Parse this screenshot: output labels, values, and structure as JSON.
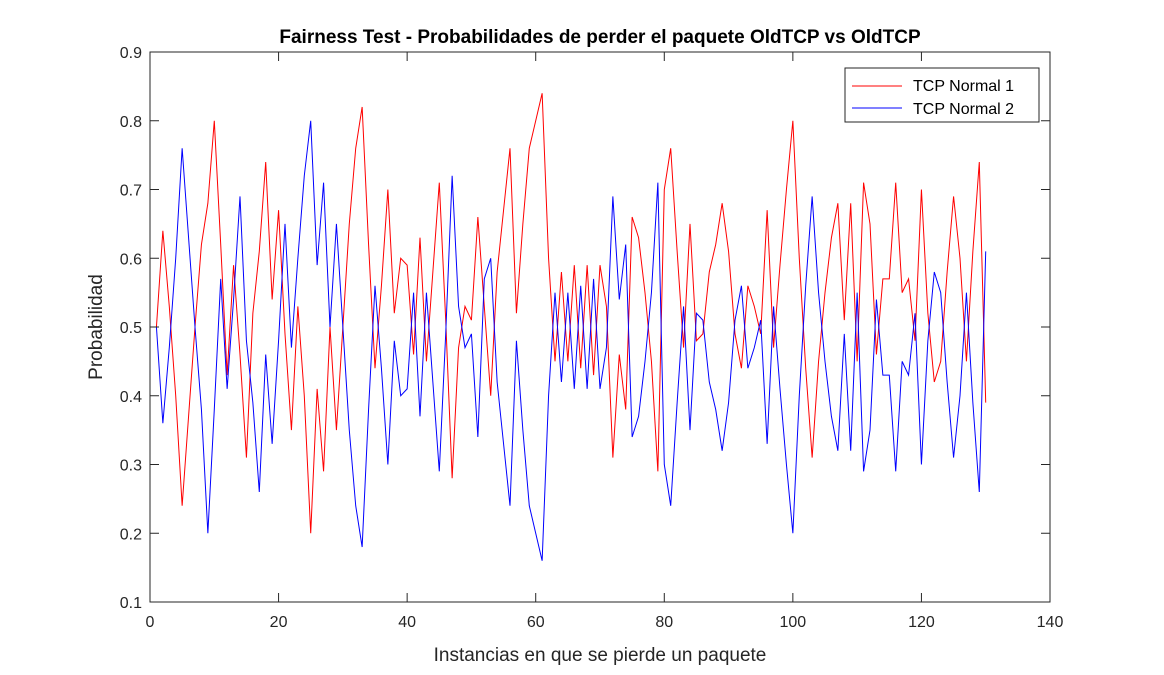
{
  "chart_data": {
    "type": "line",
    "title": "Fairness Test - Probabilidades de perder el paquete OldTCP vs OldTCP",
    "xlabel": "Instancias en que se pierde un paquete",
    "ylabel": "Probabilidad",
    "xlim": [
      0,
      140
    ],
    "ylim": [
      0.1,
      0.9
    ],
    "xticks": [
      0,
      20,
      40,
      60,
      80,
      100,
      120,
      140
    ],
    "xtick_labels": [
      "0",
      "20",
      "40",
      "60",
      "80",
      "100",
      "120",
      "140"
    ],
    "yticks": [
      0.1,
      0.2,
      0.3,
      0.4,
      0.5,
      0.6,
      0.7,
      0.8,
      0.9
    ],
    "ytick_labels": [
      "0.1",
      "0.2",
      "0.3",
      "0.4",
      "0.5",
      "0.6",
      "0.7",
      "0.8",
      "0.9"
    ],
    "grid": false,
    "legend_position": "top-right",
    "series": [
      {
        "name": "TCP Normal 1",
        "color": "#ff0000",
        "x": [
          1,
          2,
          3,
          4,
          5,
          6,
          7,
          8,
          9,
          10,
          11,
          12,
          13,
          14,
          15,
          16,
          17,
          18,
          19,
          20,
          21,
          22,
          23,
          24,
          25,
          26,
          27,
          28,
          29,
          30,
          31,
          32,
          33,
          34,
          35,
          36,
          37,
          38,
          39,
          40,
          41,
          42,
          43,
          44,
          45,
          46,
          47,
          48,
          49,
          50,
          51,
          52,
          53,
          54,
          55,
          56,
          57,
          58,
          59,
          60,
          61,
          62,
          63,
          64,
          65,
          66,
          67,
          68,
          69,
          70,
          71,
          72,
          73,
          74,
          75,
          76,
          77,
          78,
          79,
          80,
          81,
          82,
          83,
          84,
          85,
          86,
          87,
          88,
          89,
          90,
          91,
          92,
          93,
          94,
          95,
          96,
          97,
          98,
          99,
          100,
          101,
          102,
          103,
          104,
          105,
          106,
          107,
          108,
          109,
          110,
          111,
          112,
          113,
          114,
          115,
          116,
          117,
          118,
          119,
          120,
          121,
          122,
          123,
          124,
          125,
          126,
          127,
          128,
          129,
          130
        ],
        "y": [
          0.5,
          0.64,
          0.53,
          0.4,
          0.24,
          0.37,
          0.5,
          0.62,
          0.68,
          0.8,
          0.62,
          0.43,
          0.59,
          0.46,
          0.31,
          0.52,
          0.61,
          0.74,
          0.54,
          0.67,
          0.49,
          0.35,
          0.53,
          0.4,
          0.2,
          0.41,
          0.29,
          0.5,
          0.35,
          0.5,
          0.65,
          0.76,
          0.82,
          0.62,
          0.44,
          0.56,
          0.7,
          0.52,
          0.6,
          0.59,
          0.46,
          0.63,
          0.45,
          0.58,
          0.71,
          0.51,
          0.28,
          0.47,
          0.53,
          0.51,
          0.66,
          0.53,
          0.4,
          0.58,
          0.67,
          0.76,
          0.52,
          0.65,
          0.76,
          0.8,
          0.84,
          0.6,
          0.45,
          0.58,
          0.45,
          0.59,
          0.44,
          0.59,
          0.43,
          0.59,
          0.53,
          0.31,
          0.46,
          0.38,
          0.66,
          0.63,
          0.55,
          0.45,
          0.29,
          0.7,
          0.76,
          0.61,
          0.47,
          0.65,
          0.48,
          0.49,
          0.58,
          0.62,
          0.68,
          0.61,
          0.49,
          0.44,
          0.56,
          0.53,
          0.49,
          0.67,
          0.47,
          0.59,
          0.7,
          0.8,
          0.6,
          0.44,
          0.31,
          0.45,
          0.55,
          0.63,
          0.68,
          0.51,
          0.68,
          0.45,
          0.71,
          0.65,
          0.46,
          0.57,
          0.57,
          0.71,
          0.55,
          0.57,
          0.48,
          0.7,
          0.52,
          0.42,
          0.45,
          0.58,
          0.69,
          0.6,
          0.45,
          0.61,
          0.74,
          0.39
        ]
      },
      {
        "name": "TCP Normal 2",
        "color": "#0000ff",
        "x": [
          1,
          2,
          3,
          4,
          5,
          6,
          7,
          8,
          9,
          10,
          11,
          12,
          13,
          14,
          15,
          16,
          17,
          18,
          19,
          20,
          21,
          22,
          23,
          24,
          25,
          26,
          27,
          28,
          29,
          30,
          31,
          32,
          33,
          34,
          35,
          36,
          37,
          38,
          39,
          40,
          41,
          42,
          43,
          44,
          45,
          46,
          47,
          48,
          49,
          50,
          51,
          52,
          53,
          54,
          55,
          56,
          57,
          58,
          59,
          60,
          61,
          62,
          63,
          64,
          65,
          66,
          67,
          68,
          69,
          70,
          71,
          72,
          73,
          74,
          75,
          76,
          77,
          78,
          79,
          80,
          81,
          82,
          83,
          84,
          85,
          86,
          87,
          88,
          89,
          90,
          91,
          92,
          93,
          94,
          95,
          96,
          97,
          98,
          99,
          100,
          101,
          102,
          103,
          104,
          105,
          106,
          107,
          108,
          109,
          110,
          111,
          112,
          113,
          114,
          115,
          116,
          117,
          118,
          119,
          120,
          121,
          122,
          123,
          124,
          125,
          126,
          127,
          128,
          129,
          130
        ],
        "y": [
          0.5,
          0.36,
          0.47,
          0.6,
          0.76,
          0.63,
          0.5,
          0.38,
          0.2,
          0.38,
          0.57,
          0.41,
          0.54,
          0.69,
          0.48,
          0.39,
          0.26,
          0.46,
          0.33,
          0.48,
          0.65,
          0.47,
          0.6,
          0.72,
          0.8,
          0.59,
          0.71,
          0.5,
          0.65,
          0.5,
          0.35,
          0.24,
          0.18,
          0.38,
          0.56,
          0.44,
          0.3,
          0.48,
          0.4,
          0.41,
          0.55,
          0.37,
          0.55,
          0.42,
          0.29,
          0.49,
          0.72,
          0.53,
          0.47,
          0.49,
          0.34,
          0.57,
          0.6,
          0.42,
          0.33,
          0.24,
          0.48,
          0.35,
          0.24,
          0.2,
          0.16,
          0.4,
          0.55,
          0.42,
          0.55,
          0.41,
          0.56,
          0.41,
          0.57,
          0.41,
          0.47,
          0.69,
          0.54,
          0.62,
          0.34,
          0.37,
          0.45,
          0.55,
          0.71,
          0.3,
          0.24,
          0.39,
          0.53,
          0.35,
          0.52,
          0.51,
          0.42,
          0.38,
          0.32,
          0.39,
          0.51,
          0.56,
          0.44,
          0.47,
          0.51,
          0.33,
          0.53,
          0.41,
          0.3,
          0.2,
          0.4,
          0.56,
          0.69,
          0.55,
          0.45,
          0.37,
          0.32,
          0.49,
          0.32,
          0.55,
          0.29,
          0.35,
          0.54,
          0.43,
          0.43,
          0.29,
          0.45,
          0.43,
          0.52,
          0.3,
          0.48,
          0.58,
          0.55,
          0.42,
          0.31,
          0.4,
          0.55,
          0.39,
          0.26,
          0.61
        ]
      }
    ]
  }
}
